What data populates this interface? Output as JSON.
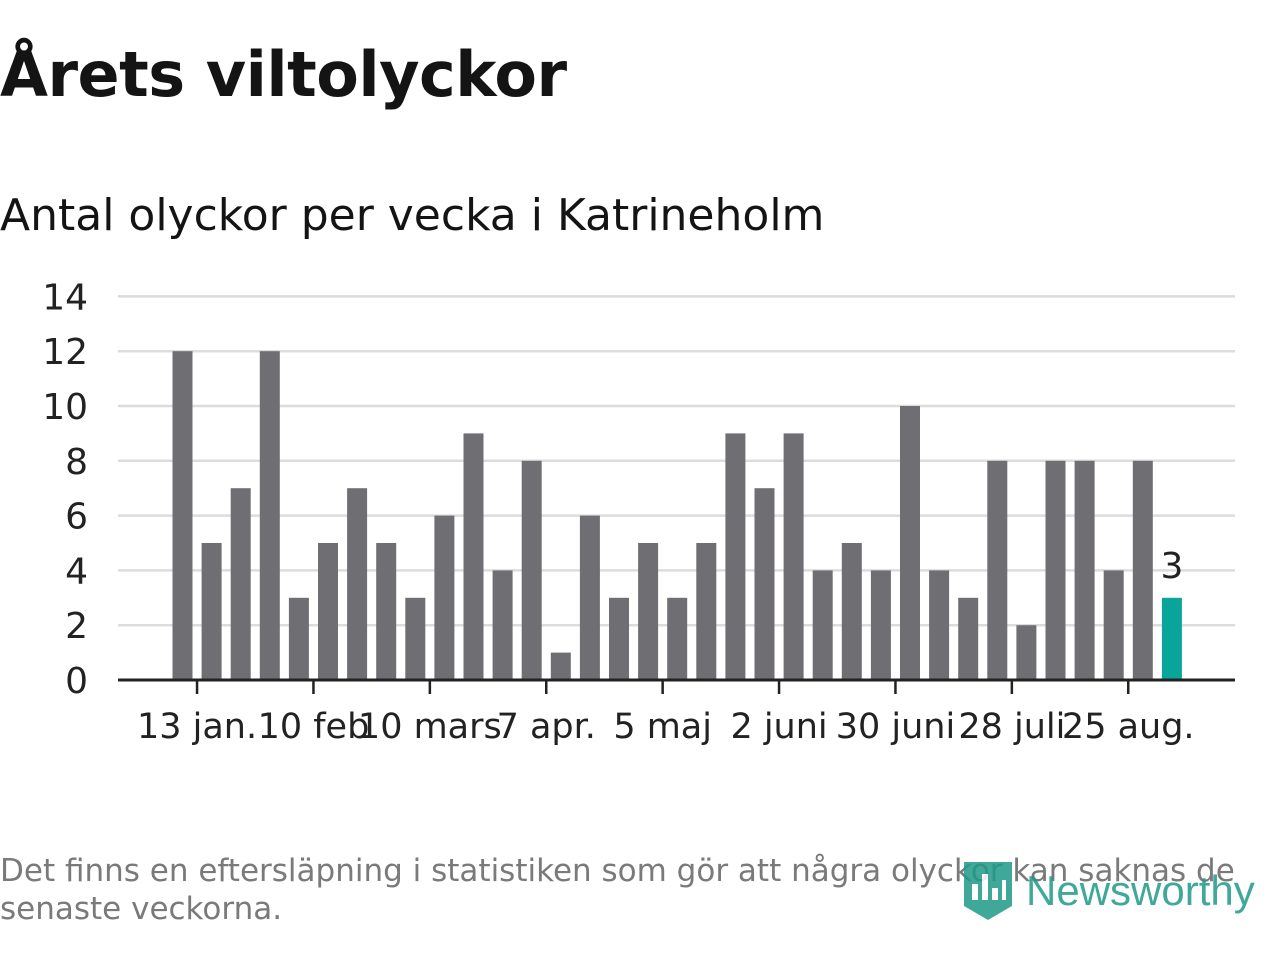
{
  "title": "Årets viltolyckor",
  "subtitle": "Antal olyckor per vecka i Katrineholm",
  "footnote": "Det finns en eftersläpning i statistiken som gör att några olyckor kan saknas de senaste veckorna.",
  "logo": {
    "text": "Newsworthy",
    "icon": "newsworthy-logo-icon",
    "color": "#1f9a88"
  },
  "chart_data": {
    "type": "bar",
    "values": [
      12,
      5,
      7,
      12,
      3,
      5,
      7,
      5,
      3,
      6,
      9,
      4,
      8,
      1,
      6,
      3,
      5,
      3,
      5,
      9,
      7,
      9,
      4,
      5,
      4,
      10,
      4,
      3,
      8,
      2,
      8,
      8,
      4,
      8,
      3
    ],
    "x_tick_labels": [
      {
        "label": "13 jan.",
        "index": 1
      },
      {
        "label": "10 feb",
        "index": 5
      },
      {
        "label": "10 mars",
        "index": 9
      },
      {
        "label": "7 apr.",
        "index": 13
      },
      {
        "label": "5 maj",
        "index": 17
      },
      {
        "label": "2 juni",
        "index": 21
      },
      {
        "label": "30 juni",
        "index": 25
      },
      {
        "label": "28 juli",
        "index": 29
      },
      {
        "label": "25 aug.",
        "index": 33
      }
    ],
    "y_ticks": [
      0,
      2,
      4,
      6,
      8,
      10,
      12,
      14
    ],
    "ylim": [
      0,
      14
    ],
    "grid": true,
    "bar_color": "#6f6e73",
    "highlight_color": "#0aa59a",
    "highlight_index": 34,
    "highlight_label": "3",
    "grid_color": "#dcdcdc",
    "axis_color": "#222222"
  }
}
